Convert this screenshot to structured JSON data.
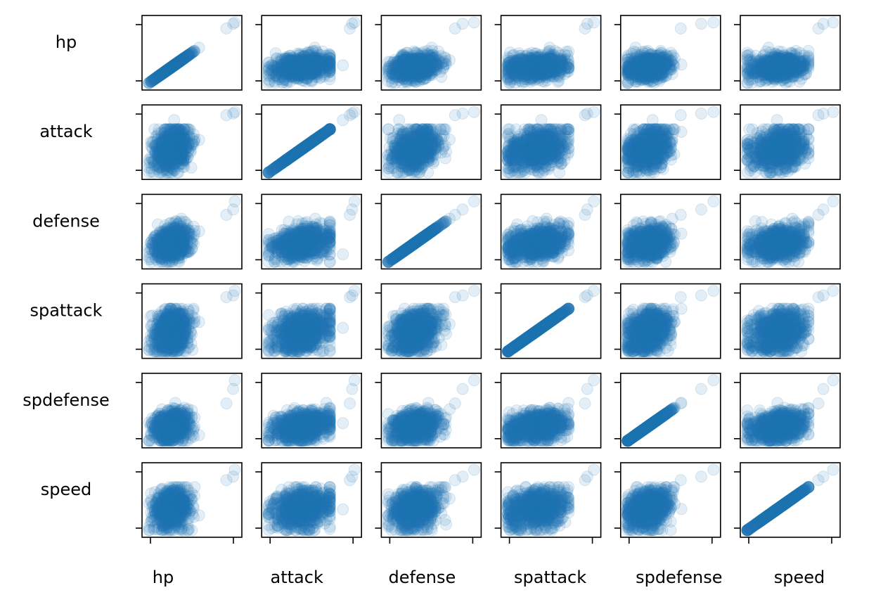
{
  "chart_data": {
    "type": "scatter",
    "subtype": "scatter-matrix",
    "variables": [
      "hp",
      "attack",
      "defense",
      "spattack",
      "spdefense",
      "speed"
    ],
    "row_labels": [
      "hp",
      "attack",
      "defense",
      "spattack",
      "spdefense",
      "speed"
    ],
    "column_labels": [
      "hp",
      "attack",
      "defense",
      "spattack",
      "spdefense",
      "speed"
    ],
    "ticks": {
      "x": [
        "",
        ""
      ],
      "y": [
        "",
        ""
      ]
    },
    "ranges": {
      "hp": [
        1,
        255
      ],
      "attack": [
        5,
        190
      ],
      "defense": [
        5,
        230
      ],
      "spattack": [
        10,
        194
      ],
      "spdefense": [
        20,
        230
      ],
      "speed": [
        5,
        180
      ]
    },
    "diagonal": "identity line of points (variable vs itself)",
    "point_count_per_panel": 800,
    "marker": "circle",
    "color": "#1f77b4",
    "point_opacity": 0.12,
    "grid": false,
    "legend": "none",
    "outliers": {
      "hp": [
        255,
        250,
        230
      ],
      "attack": [
        190,
        185,
        180,
        165
      ],
      "defense": [
        230,
        200,
        180
      ],
      "spattack": [
        194,
        180,
        175
      ],
      "spdefense": [
        230,
        200,
        150
      ],
      "speed": [
        180,
        160,
        150
      ]
    }
  }
}
